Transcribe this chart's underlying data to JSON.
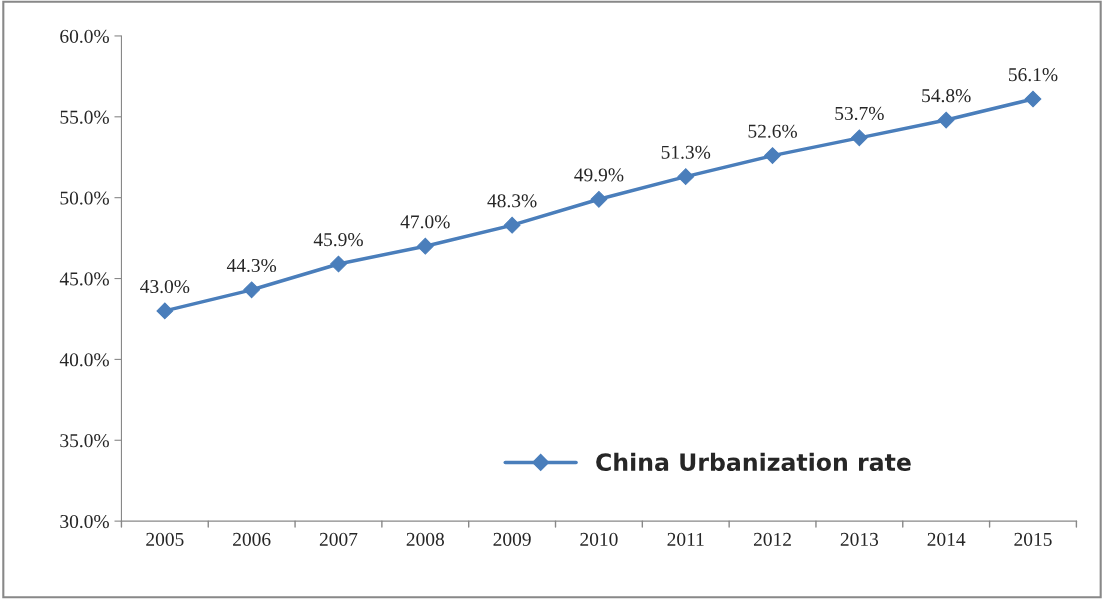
{
  "chart_data": {
    "type": "line",
    "categories": [
      "2005",
      "2006",
      "2007",
      "2008",
      "2009",
      "2010",
      "2011",
      "2012",
      "2013",
      "2014",
      "2015"
    ],
    "series": [
      {
        "name": "China Urbanization rate",
        "color": "#4a7ebb",
        "values": [
          43.0,
          44.3,
          45.9,
          47.0,
          48.3,
          49.9,
          51.3,
          52.6,
          53.7,
          54.8,
          56.1
        ],
        "value_labels": [
          "43.0%",
          "44.3%",
          "45.9%",
          "47.0%",
          "48.3%",
          "49.9%",
          "51.3%",
          "52.6%",
          "53.7%",
          "54.8%",
          "56.1%"
        ]
      }
    ],
    "ylim": [
      30,
      60
    ],
    "yticks": [
      {
        "value": 30,
        "label": "30.0%"
      },
      {
        "value": 35,
        "label": "35.0%"
      },
      {
        "value": 40,
        "label": "40.0%"
      },
      {
        "value": 45,
        "label": "45.0%"
      },
      {
        "value": 50,
        "label": "50.0%"
      },
      {
        "value": 55,
        "label": "55.0%"
      },
      {
        "value": 60,
        "label": "60.0%"
      }
    ],
    "marker": "diamond",
    "line_style": "solid",
    "grid": false,
    "legend": "bottom right"
  }
}
